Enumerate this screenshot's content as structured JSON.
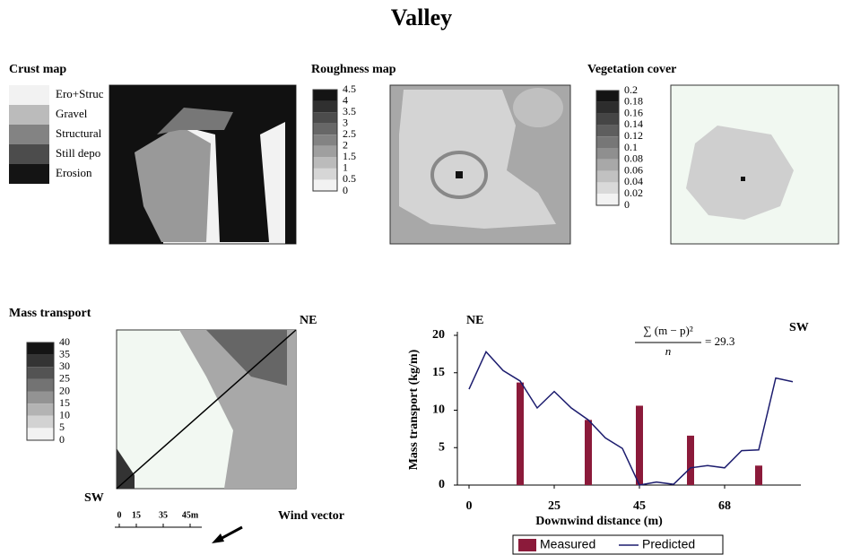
{
  "title": "Valley",
  "panels": [
    {
      "title": "Crust map",
      "legend": [
        "Ero+Struc",
        "Gravel",
        "Structural",
        "Still depo",
        "Erosion"
      ]
    },
    {
      "title": "Roughness map",
      "legend": [
        "4.5",
        "4",
        "3.5",
        "3",
        "2.5",
        "2",
        "1.5",
        "1",
        "0.5",
        "0"
      ]
    },
    {
      "title": "Vegetation cover",
      "legend": [
        "0.2",
        "0.18",
        "0.16",
        "0.14",
        "0.12",
        "0.1",
        "0.08",
        "0.06",
        "0.04",
        "0.02",
        "0"
      ]
    },
    {
      "title": "Mass transport",
      "legend": [
        "40",
        "35",
        "30",
        "25",
        "20",
        "15",
        "10",
        "5",
        "0"
      ],
      "corner_labels": [
        "NE",
        "SW"
      ],
      "scale_labels": [
        "0",
        "15",
        "35",
        "45m"
      ],
      "arrow_label": "Wind vector"
    }
  ],
  "chart_data": {
    "type": "bar-line",
    "ylabel": "Mass transport (kg/m)",
    "xlabel": "Downwind distance (m)",
    "annotations": [
      "NE",
      "SW",
      "∑ (m − p)²",
      "n",
      "= 29.3"
    ],
    "xlim": [
      0,
      19
    ],
    "xticks": [
      {
        "value": 0,
        "label": "0"
      },
      {
        "value": 5,
        "label": "25"
      },
      {
        "value": 10,
        "label": "45"
      },
      {
        "value": 15,
        "label": "68"
      }
    ],
    "ylim": [
      0,
      20
    ],
    "yticks": [
      0,
      5,
      10,
      15,
      20
    ],
    "x": [
      0,
      1,
      2,
      3,
      4,
      5,
      6,
      7,
      8,
      9,
      10,
      11,
      12,
      13,
      14,
      15,
      16,
      17,
      18,
      19
    ],
    "series": [
      {
        "name": "Measured",
        "color": "#8b1a3a",
        "values": [
          null,
          null,
          null,
          13.7,
          null,
          null,
          null,
          8.7,
          null,
          null,
          10.6,
          null,
          null,
          6.6,
          null,
          null,
          null,
          2.6,
          null,
          null
        ]
      },
      {
        "name": "Predicted",
        "color": "#1c1c6e",
        "values": [
          12.8,
          17.8,
          15.3,
          13.9,
          10.3,
          12.5,
          10.3,
          8.7,
          6.3,
          4.9,
          0,
          0.4,
          0.1,
          2.3,
          2.6,
          2.3,
          4.6,
          4.7,
          14.3,
          13.8
        ]
      }
    ]
  }
}
